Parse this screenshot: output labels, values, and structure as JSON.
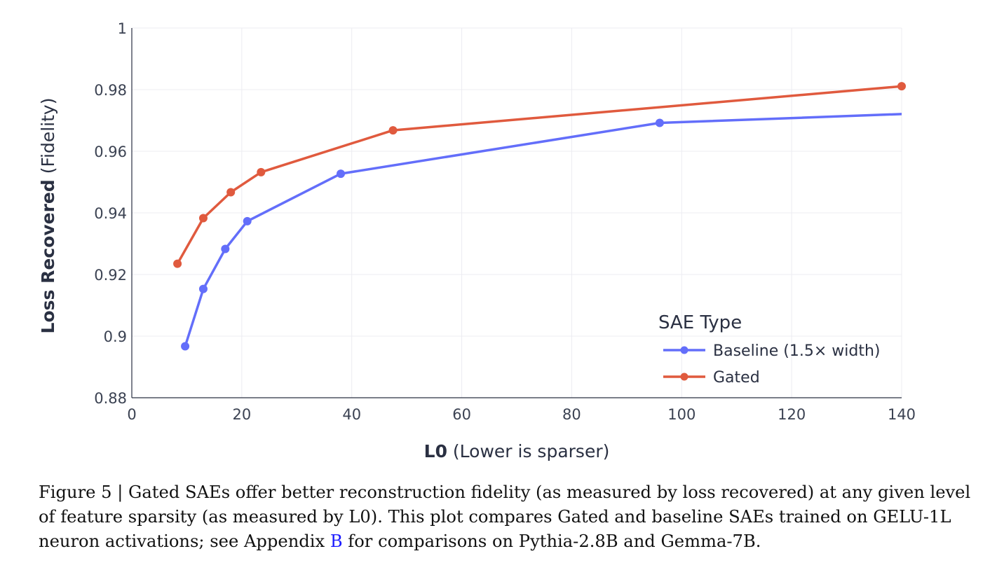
{
  "chart_data": {
    "type": "line",
    "xlabel_bold": "L0",
    "xlabel_rest": " (Lower is sparser)",
    "ylabel_bold": "Loss Recovered",
    "ylabel_rest": " (Fidelity)",
    "xlim": [
      0,
      140
    ],
    "ylim": [
      0.88,
      1.0
    ],
    "x_ticks": [
      0,
      20,
      40,
      60,
      80,
      100,
      120,
      140
    ],
    "x_tick_labels": [
      "0",
      "20",
      "40",
      "60",
      "80",
      "100",
      "120",
      "140"
    ],
    "y_ticks": [
      0.88,
      0.9,
      0.92,
      0.94,
      0.96,
      0.98,
      1.0
    ],
    "y_tick_labels": [
      "0.88",
      "0.9",
      "0.92",
      "0.94",
      "0.96",
      "0.98",
      "1"
    ],
    "grid": true,
    "legend": {
      "title": "SAE Type",
      "placement": "bottom-right"
    },
    "series": [
      {
        "name": "Baseline (1.5× width)",
        "color": "#636efa",
        "x": [
          9.7,
          13.0,
          17.0,
          21.0,
          38.0,
          96.0,
          142.0
        ],
        "y": [
          0.8967,
          0.9153,
          0.9283,
          0.9373,
          0.9527,
          0.9692,
          0.9722
        ],
        "marker_count": 6
      },
      {
        "name": "Gated",
        "color": "#e05a3e",
        "x": [
          8.3,
          13.0,
          18.0,
          23.5,
          47.5,
          140.0
        ],
        "y": [
          0.9235,
          0.9383,
          0.9467,
          0.9532,
          0.9668,
          0.9811
        ],
        "marker_count": 6
      }
    ]
  },
  "caption": {
    "text_before": "Figure 5 | Gated SAEs offer better reconstruction fidelity (as measured by loss recovered) at any given level of feature sparsity (as measured by L0). This plot compares Gated and baseline SAEs trained on GELU-1L neuron activations; see Appendix ",
    "link": "B",
    "text_after": " for comparisons on Pythia-2.8B and Gemma-7B."
  }
}
